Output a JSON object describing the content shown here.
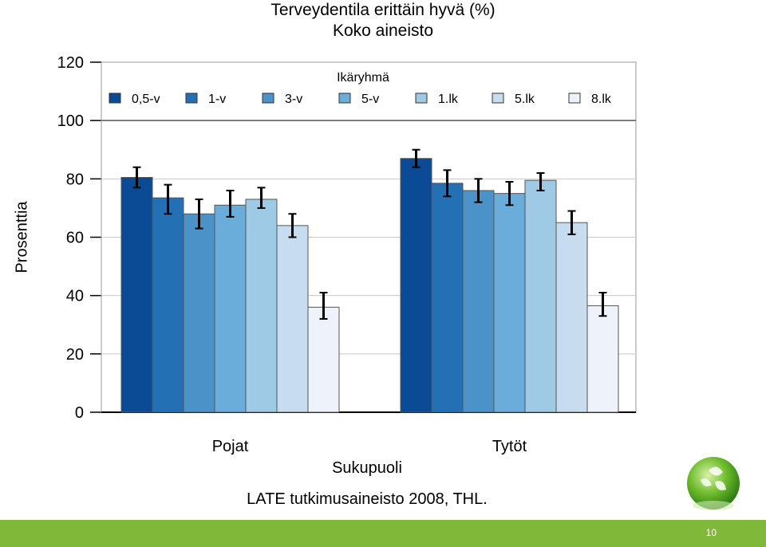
{
  "chart_data": {
    "type": "bar",
    "title": "Terveydentila erittäin hyvä (%)",
    "subtitle": "Koko aineisto",
    "xlabel": "Sukupuoli",
    "ylabel": "Prosenttia",
    "ylim": [
      0,
      120
    ],
    "yticks": [
      "0",
      "20",
      "40",
      "60",
      "80",
      "100",
      "120"
    ],
    "categories": [
      "Pojat",
      "Tytöt"
    ],
    "legend_title": "Ikäryhmä",
    "legend_position": "top",
    "grid": true,
    "series": [
      {
        "name": "0,5-v",
        "color": "#0b4a94",
        "values": [
          80.5,
          87.0
        ],
        "err_low": [
          77,
          84
        ],
        "err_high": [
          84,
          90
        ]
      },
      {
        "name": "1-v",
        "color": "#2470b4",
        "values": [
          73.5,
          78.5
        ],
        "err_low": [
          68,
          74
        ],
        "err_high": [
          78,
          83
        ]
      },
      {
        "name": "3-v",
        "color": "#4a92c7",
        "values": [
          68.0,
          76.0
        ],
        "err_low": [
          63,
          72
        ],
        "err_high": [
          73,
          80
        ]
      },
      {
        "name": "5-v",
        "color": "#6aadda",
        "values": [
          71.0,
          75.0
        ],
        "err_low": [
          67,
          71
        ],
        "err_high": [
          76,
          79
        ]
      },
      {
        "name": "1.lk",
        "color": "#9ecae6",
        "values": [
          73.0,
          79.5
        ],
        "err_low": [
          70,
          76
        ],
        "err_high": [
          77,
          82
        ]
      },
      {
        "name": "5.lk",
        "color": "#c8dcf0",
        "values": [
          64.0,
          65.0
        ],
        "err_low": [
          60,
          61
        ],
        "err_high": [
          68,
          69
        ]
      },
      {
        "name": "8.lk",
        "color": "#eef3fb",
        "values": [
          36.0,
          36.5
        ],
        "err_low": [
          32,
          33
        ],
        "err_high": [
          41,
          41
        ]
      }
    ]
  },
  "footer": {
    "source": "LATE tutkimusaineisto 2008, THL.",
    "page_number": "10"
  },
  "colors": {
    "bottom_bar": "#80b83a",
    "logo": "green-leaf-globe"
  }
}
